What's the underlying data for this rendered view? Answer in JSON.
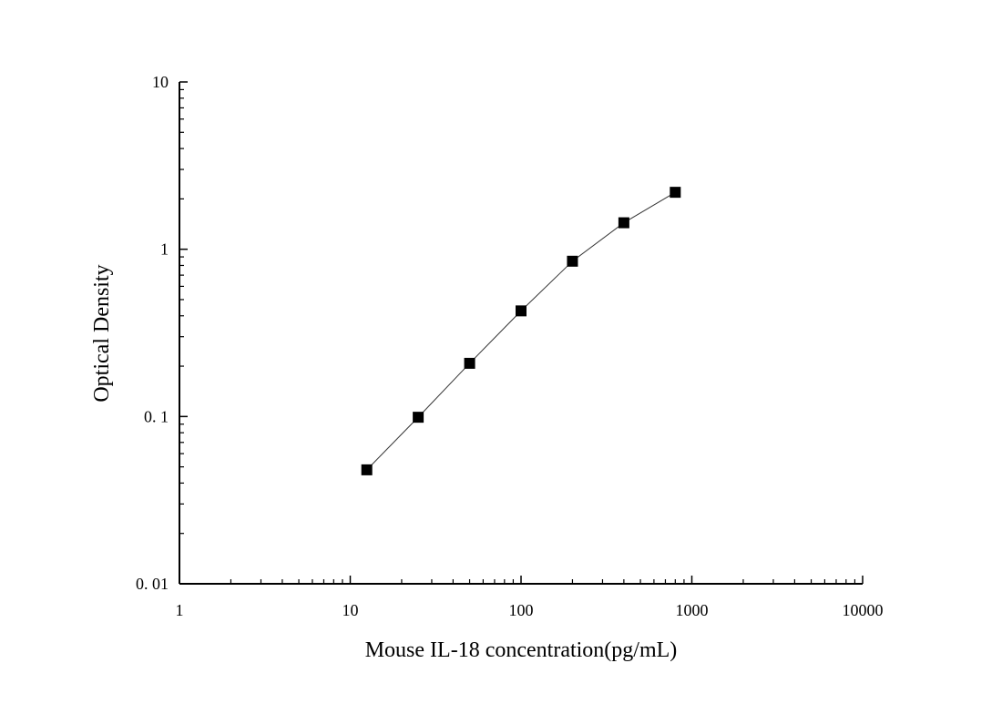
{
  "chart_data": {
    "type": "scatter",
    "title": "",
    "xlabel": "Mouse IL-18 concentration(pg/mL)",
    "ylabel": "Optical Density",
    "xscale": "log",
    "yscale": "log",
    "xlim": [
      1,
      10000
    ],
    "ylim": [
      0.01,
      10
    ],
    "xticks": [
      1,
      10,
      100,
      1000,
      10000
    ],
    "xtick_labels": [
      "1",
      "10",
      "100",
      "1000",
      "10000"
    ],
    "yticks": [
      0.01,
      0.1,
      1,
      10
    ],
    "ytick_labels": [
      "0. 01",
      "0. 1",
      "1",
      "10"
    ],
    "grid": false,
    "marker": "square",
    "connected": true,
    "colors": {
      "marker": "#000000",
      "line": "#333333",
      "axis": "#000000"
    },
    "series": [
      {
        "x": [
          12.5,
          25,
          50,
          100,
          200,
          400,
          800
        ],
        "y": [
          0.048,
          0.099,
          0.208,
          0.428,
          0.848,
          1.44,
          2.19
        ]
      }
    ]
  }
}
